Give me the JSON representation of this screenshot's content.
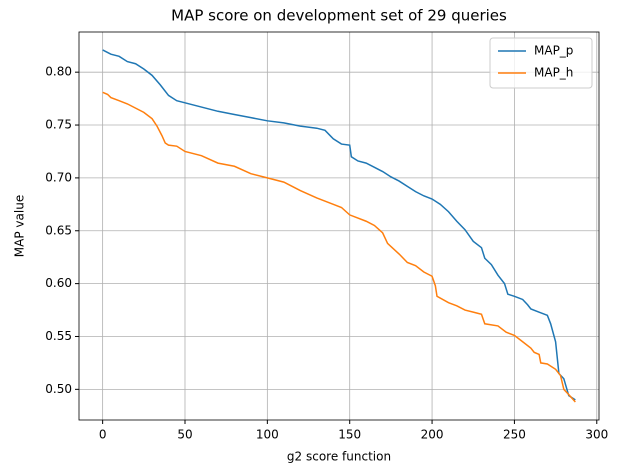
{
  "chart_data": {
    "type": "line",
    "title": "MAP score on development set of 29 queries",
    "xlabel": "g2 score function",
    "ylabel": "MAP value",
    "xlim": [
      -14.35,
      301.35
    ],
    "ylim": [
      0.471,
      0.838
    ],
    "xticks": [
      0,
      50,
      100,
      150,
      200,
      250,
      300
    ],
    "yticks": [
      {
        "value": 0.5,
        "label": "0.50"
      },
      {
        "value": 0.55,
        "label": "0.55"
      },
      {
        "value": 0.6,
        "label": "0.60"
      },
      {
        "value": 0.65,
        "label": "0.65"
      },
      {
        "value": 0.7,
        "label": "0.70"
      },
      {
        "value": 0.75,
        "label": "0.75"
      },
      {
        "value": 0.8,
        "label": "0.80"
      }
    ],
    "grid": true,
    "legend": "upper right",
    "series": [
      {
        "name": "MAP_p",
        "color": "#1f77b4",
        "x": [
          0,
          5,
          10,
          15,
          20,
          25,
          30,
          35,
          40,
          45,
          50,
          60,
          70,
          80,
          90,
          100,
          110,
          120,
          130,
          135,
          140,
          145,
          150,
          151,
          155,
          160,
          165,
          170,
          175,
          180,
          185,
          190,
          195,
          200,
          205,
          210,
          215,
          220,
          225,
          230,
          232,
          236,
          240,
          244,
          246,
          250,
          255,
          258,
          260,
          265,
          270,
          272,
          275,
          277,
          280,
          283,
          287
        ],
        "values": [
          0.821,
          0.817,
          0.815,
          0.81,
          0.808,
          0.803,
          0.797,
          0.788,
          0.778,
          0.773,
          0.771,
          0.767,
          0.763,
          0.76,
          0.757,
          0.754,
          0.752,
          0.749,
          0.747,
          0.745,
          0.737,
          0.732,
          0.731,
          0.72,
          0.716,
          0.714,
          0.71,
          0.706,
          0.701,
          0.697,
          0.692,
          0.687,
          0.683,
          0.68,
          0.675,
          0.668,
          0.659,
          0.651,
          0.64,
          0.634,
          0.624,
          0.618,
          0.608,
          0.6,
          0.59,
          0.588,
          0.585,
          0.58,
          0.576,
          0.573,
          0.57,
          0.562,
          0.545,
          0.515,
          0.51,
          0.494,
          0.49
        ]
      },
      {
        "name": "MAP_h",
        "color": "#ff7f0e",
        "x": [
          0,
          3,
          5,
          10,
          15,
          20,
          25,
          30,
          33,
          36,
          38,
          40,
          45,
          50,
          60,
          70,
          80,
          90,
          100,
          110,
          115,
          120,
          130,
          140,
          145,
          150,
          160,
          165,
          170,
          173,
          180,
          185,
          190,
          195,
          200,
          202,
          203,
          210,
          215,
          220,
          225,
          230,
          232,
          240,
          245,
          250,
          255,
          260,
          262,
          265,
          266,
          270,
          275,
          278,
          280,
          283,
          287
        ],
        "values": [
          0.781,
          0.779,
          0.776,
          0.773,
          0.77,
          0.766,
          0.762,
          0.756,
          0.749,
          0.74,
          0.733,
          0.731,
          0.73,
          0.725,
          0.721,
          0.714,
          0.711,
          0.704,
          0.7,
          0.696,
          0.692,
          0.688,
          0.681,
          0.675,
          0.672,
          0.665,
          0.659,
          0.655,
          0.648,
          0.638,
          0.628,
          0.62,
          0.617,
          0.611,
          0.607,
          0.598,
          0.588,
          0.582,
          0.579,
          0.575,
          0.573,
          0.571,
          0.562,
          0.56,
          0.554,
          0.551,
          0.545,
          0.539,
          0.535,
          0.533,
          0.525,
          0.524,
          0.519,
          0.513,
          0.5,
          0.495,
          0.488
        ]
      }
    ]
  }
}
